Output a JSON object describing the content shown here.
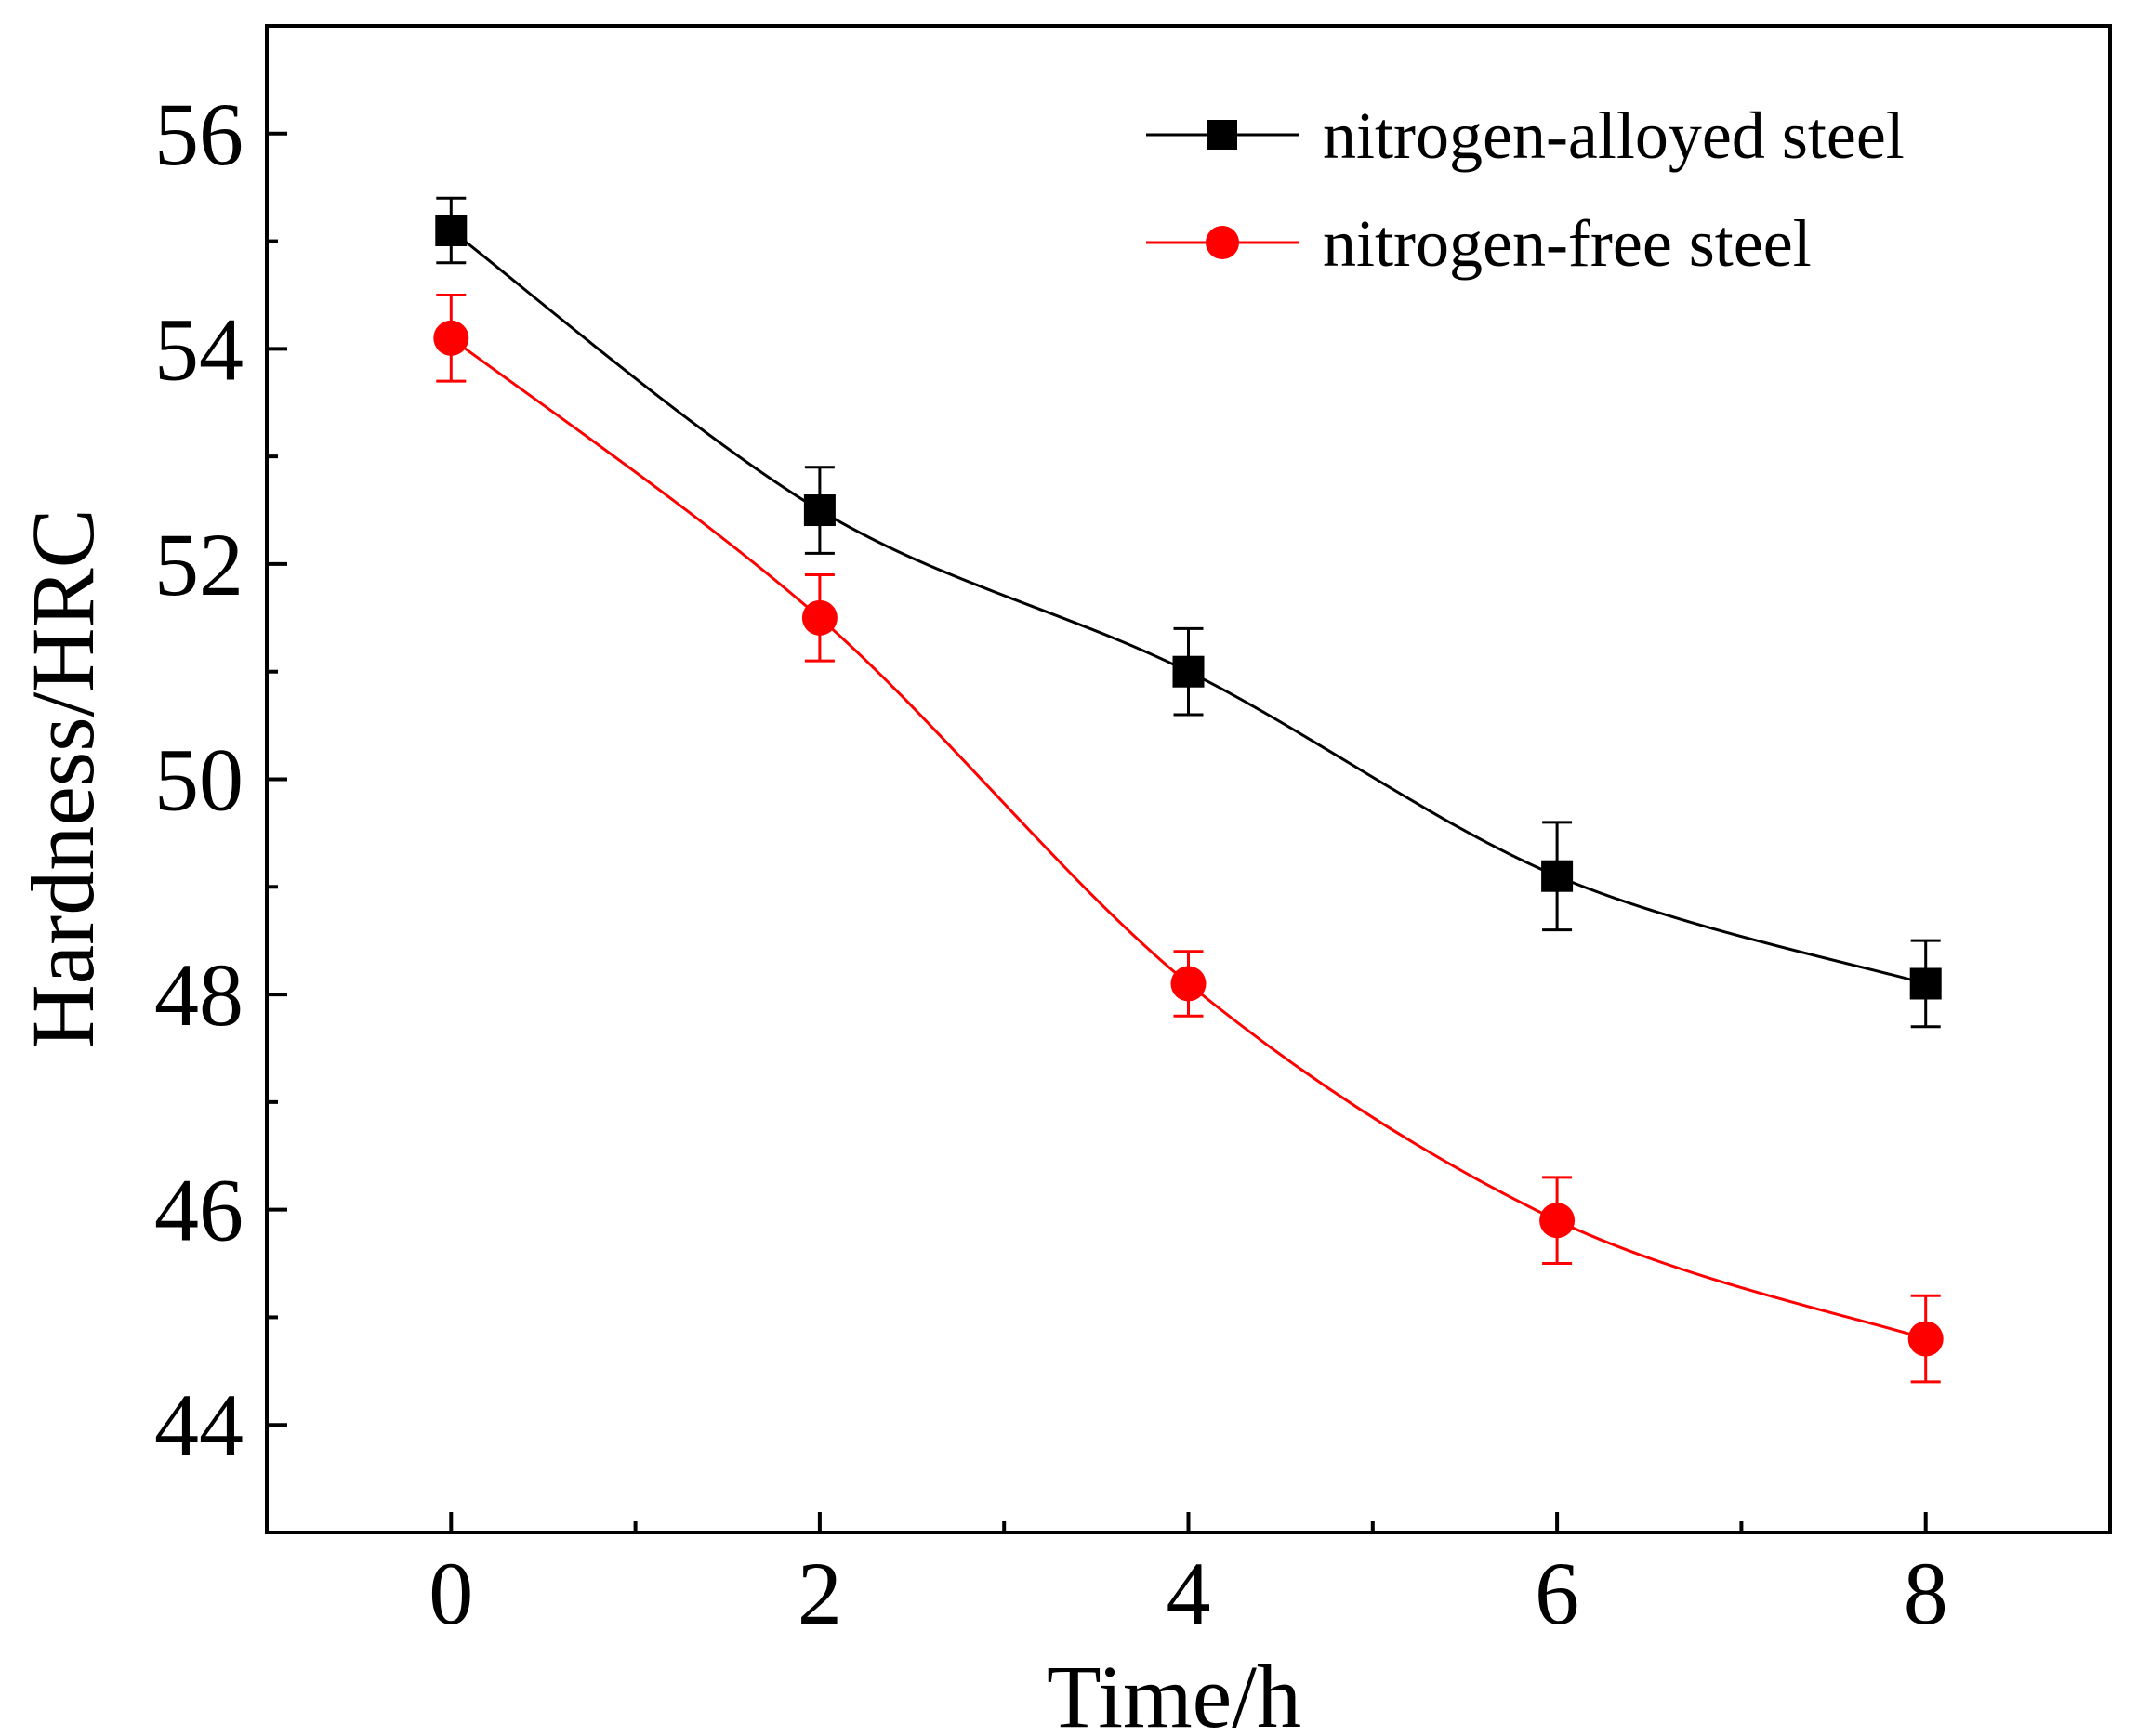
{
  "chart_data": {
    "type": "line",
    "xlabel": "Time/h",
    "ylabel": "Hardness/HRC",
    "xlim": [
      -1,
      9
    ],
    "ylim": [
      43,
      57
    ],
    "x_major_ticks": [
      0,
      2,
      4,
      6,
      8
    ],
    "x_minor_ticks": [
      1,
      3,
      5,
      7
    ],
    "y_major_ticks": [
      44,
      46,
      48,
      50,
      52,
      54,
      56
    ],
    "y_minor_ticks": [
      45,
      47,
      49,
      51,
      53,
      55
    ],
    "x_tick_labels": [
      "0",
      "2",
      "4",
      "6",
      "8"
    ],
    "y_tick_labels": [
      "44",
      "46",
      "48",
      "50",
      "52",
      "54",
      "56"
    ],
    "x": [
      0,
      2,
      4,
      6,
      8
    ],
    "legend_position": "top-right",
    "grid": false,
    "series": [
      {
        "name": "nitrogen-alloyed steel",
        "color": "#000000",
        "marker": "square",
        "values": [
          55.1,
          52.5,
          51.0,
          49.1,
          48.1
        ],
        "errors": [
          0.3,
          0.4,
          0.4,
          0.5,
          0.4
        ]
      },
      {
        "name": "nitrogen-free steel",
        "color": "#ff0000",
        "marker": "circle",
        "values": [
          54.1,
          51.5,
          48.1,
          45.9,
          44.8
        ],
        "errors": [
          0.4,
          0.4,
          0.3,
          0.4,
          0.4
        ]
      }
    ]
  }
}
